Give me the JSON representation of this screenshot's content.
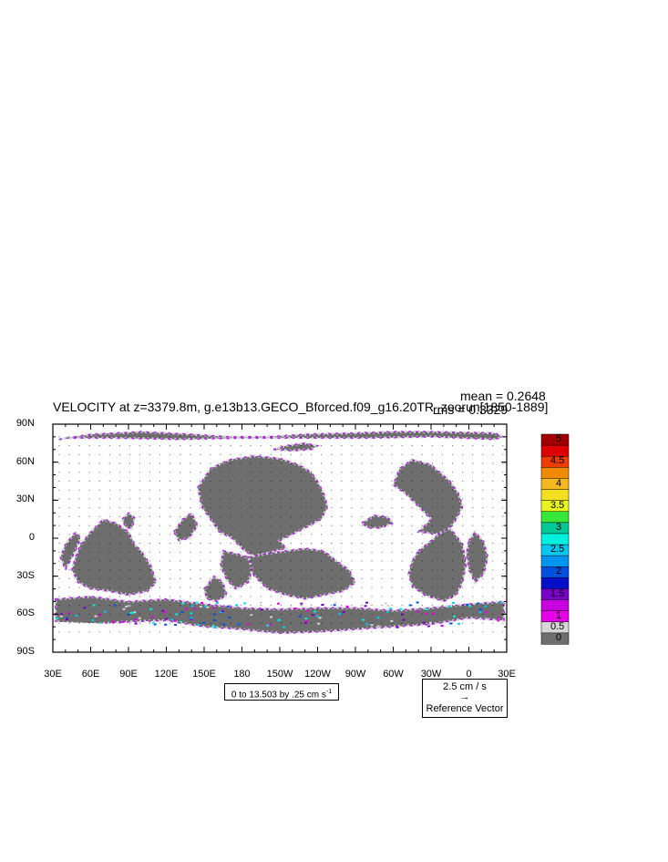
{
  "title": "VELOCITY at z=3379.8m, g.e13b13.GECO_Bforced.f09_g16.20TR_zoorun[1850-1889]",
  "stats": {
    "mean": "mean = 0.2648",
    "rms": "rms = 0.3329"
  },
  "axes": {
    "y_ticks": [
      "90N",
      "60N",
      "30N",
      "0",
      "30S",
      "60S",
      "90S"
    ],
    "x_ticks": [
      "30E",
      "60E",
      "90E",
      "120E",
      "150E",
      "180",
      "150W",
      "120W",
      "90W",
      "60W",
      "30W",
      "0",
      "30E"
    ]
  },
  "contour_info": "0 to 13.503 by .25 cm s",
  "contour_info_sup": "-1",
  "reference_vector": {
    "value": "2.5 cm / s",
    "label": "Reference Vector"
  },
  "colorbar": {
    "labels": [
      "5",
      "4.5",
      "4",
      "3.5",
      "3",
      "2.5",
      "2",
      "1.5",
      "1",
      "0.5",
      "0"
    ],
    "colors": [
      "#a00000",
      "#dd0000",
      "#f03c00",
      "#f08a00",
      "#f5b820",
      "#f5e020",
      "#e8f520",
      "#38e838",
      "#00c896",
      "#00f0e0",
      "#00c8f0",
      "#0096f0",
      "#0050e0",
      "#0010c8",
      "#7800c8",
      "#c800e0",
      "#e600e6",
      "#d6d6d6",
      "#6e6e6e"
    ]
  },
  "chart_data": {
    "type": "map",
    "projection": "cylindrical equidistant",
    "lat_range": [
      -90,
      90
    ],
    "lon_range": [
      30,
      390
    ],
    "land_color": "#ffffff",
    "ocean_base_color": "#6e6e6e",
    "regions": [
      {
        "name": "north-atlantic-arctic",
        "poly": [
          [
            35,
            78
          ],
          [
            60,
            82
          ],
          [
            100,
            84
          ],
          [
            140,
            82
          ],
          [
            170,
            80
          ],
          [
            200,
            80
          ],
          [
            230,
            82
          ],
          [
            270,
            83
          ],
          [
            300,
            84
          ],
          [
            330,
            84
          ],
          [
            380,
            83
          ],
          [
            388,
            80
          ],
          [
            380,
            78
          ],
          [
            330,
            80
          ],
          [
            280,
            79
          ],
          [
            230,
            79
          ],
          [
            180,
            79
          ],
          [
            130,
            78
          ],
          [
            80,
            79
          ],
          [
            40,
            79
          ]
        ]
      },
      {
        "name": "arctic-patch-1",
        "poly": [
          [
            205,
            70
          ],
          [
            215,
            73
          ],
          [
            230,
            75
          ],
          [
            240,
            73
          ],
          [
            235,
            70
          ],
          [
            220,
            69
          ]
        ]
      },
      {
        "name": "north-pacific",
        "poly": [
          [
            145,
            40
          ],
          [
            155,
            55
          ],
          [
            170,
            62
          ],
          [
            190,
            65
          ],
          [
            210,
            63
          ],
          [
            225,
            58
          ],
          [
            235,
            52
          ],
          [
            240,
            45
          ],
          [
            245,
            35
          ],
          [
            248,
            25
          ],
          [
            243,
            15
          ],
          [
            230,
            8
          ],
          [
            220,
            3
          ],
          [
            210,
            -2
          ],
          [
            215,
            -8
          ],
          [
            200,
            -12
          ],
          [
            190,
            -15
          ],
          [
            182,
            -10
          ],
          [
            172,
            0
          ],
          [
            162,
            5
          ],
          [
            155,
            15
          ],
          [
            148,
            25
          ]
        ]
      },
      {
        "name": "east-pacific-south",
        "poly": [
          [
            185,
            -15
          ],
          [
            200,
            -12
          ],
          [
            215,
            -10
          ],
          [
            230,
            -8
          ],
          [
            245,
            -10
          ],
          [
            255,
            -18
          ],
          [
            265,
            -25
          ],
          [
            270,
            -35
          ],
          [
            260,
            -42
          ],
          [
            245,
            -45
          ],
          [
            230,
            -48
          ],
          [
            215,
            -45
          ],
          [
            200,
            -40
          ],
          [
            190,
            -30
          ],
          [
            182,
            -20
          ]
        ]
      },
      {
        "name": "south-pacific-west",
        "poly": [
          [
            165,
            -10
          ],
          [
            175,
            -12
          ],
          [
            185,
            -15
          ],
          [
            188,
            -25
          ],
          [
            185,
            -35
          ],
          [
            175,
            -40
          ],
          [
            168,
            -33
          ],
          [
            163,
            -22
          ]
        ]
      },
      {
        "name": "indian-ocean",
        "poly": [
          [
            52,
            -5
          ],
          [
            60,
            5
          ],
          [
            70,
            15
          ],
          [
            80,
            12
          ],
          [
            90,
            5
          ],
          [
            95,
            -5
          ],
          [
            100,
            -10
          ],
          [
            108,
            -22
          ],
          [
            112,
            -35
          ],
          [
            105,
            -42
          ],
          [
            90,
            -45
          ],
          [
            75,
            -42
          ],
          [
            60,
            -40
          ],
          [
            50,
            -35
          ],
          [
            45,
            -25
          ],
          [
            48,
            -15
          ]
        ]
      },
      {
        "name": "indian-west-strip",
        "poly": [
          [
            40,
            -25
          ],
          [
            48,
            -10
          ],
          [
            52,
            0
          ],
          [
            48,
            5
          ],
          [
            40,
            -5
          ],
          [
            36,
            -15
          ]
        ]
      },
      {
        "name": "tasman",
        "poly": [
          [
            150,
            -40
          ],
          [
            158,
            -30
          ],
          [
            165,
            -35
          ],
          [
            168,
            -45
          ],
          [
            160,
            -50
          ],
          [
            152,
            -48
          ]
        ]
      },
      {
        "name": "east-indian-ne",
        "poly": [
          [
            85,
            15
          ],
          [
            90,
            20
          ],
          [
            95,
            16
          ],
          [
            93,
            8
          ],
          [
            88,
            8
          ]
        ]
      },
      {
        "name": "west-pacific-marginal",
        "poly": [
          [
            126,
            5
          ],
          [
            133,
            15
          ],
          [
            140,
            20
          ],
          [
            145,
            10
          ],
          [
            138,
            0
          ],
          [
            130,
            -2
          ]
        ]
      },
      {
        "name": "caribbean",
        "poly": [
          [
            275,
            12
          ],
          [
            285,
            18
          ],
          [
            295,
            17
          ],
          [
            300,
            12
          ],
          [
            290,
            8
          ],
          [
            280,
            8
          ]
        ]
      },
      {
        "name": "south-atlantic",
        "poly": [
          [
            320,
            -10
          ],
          [
            330,
            -2
          ],
          [
            338,
            5
          ],
          [
            345,
            8
          ],
          [
            350,
            2
          ],
          [
            355,
            -5
          ],
          [
            358,
            -20
          ],
          [
            355,
            -35
          ],
          [
            350,
            -45
          ],
          [
            340,
            -50
          ],
          [
            325,
            -45
          ],
          [
            315,
            -38
          ],
          [
            312,
            -28
          ],
          [
            315,
            -18
          ]
        ]
      },
      {
        "name": "north-atlantic",
        "poly": [
          [
            320,
            5
          ],
          [
            330,
            15
          ],
          [
            320,
            25
          ],
          [
            310,
            35
          ],
          [
            300,
            42
          ],
          [
            305,
            55
          ],
          [
            315,
            62
          ],
          [
            330,
            58
          ],
          [
            345,
            45
          ],
          [
            352,
            35
          ],
          [
            355,
            25
          ],
          [
            350,
            15
          ],
          [
            345,
            8
          ],
          [
            335,
            3
          ]
        ]
      },
      {
        "name": "east-atlantic-africa",
        "poly": [
          [
            360,
            -2
          ],
          [
            365,
            5
          ],
          [
            372,
            -3
          ],
          [
            375,
            -15
          ],
          [
            372,
            -28
          ],
          [
            365,
            -35
          ],
          [
            360,
            -25
          ],
          [
            358,
            -12
          ]
        ]
      },
      {
        "name": "southern-ocean",
        "poly": [
          [
            32,
            -48
          ],
          [
            60,
            -46
          ],
          [
            90,
            -50
          ],
          [
            120,
            -48
          ],
          [
            150,
            -52
          ],
          [
            180,
            -55
          ],
          [
            210,
            -56
          ],
          [
            240,
            -55
          ],
          [
            270,
            -55
          ],
          [
            300,
            -57
          ],
          [
            330,
            -55
          ],
          [
            360,
            -52
          ],
          [
            388,
            -50
          ],
          [
            388,
            -65
          ],
          [
            360,
            -63
          ],
          [
            330,
            -68
          ],
          [
            300,
            -70
          ],
          [
            270,
            -72
          ],
          [
            240,
            -74
          ],
          [
            210,
            -75
          ],
          [
            180,
            -72
          ],
          [
            150,
            -70
          ],
          [
            120,
            -65
          ],
          [
            90,
            -66
          ],
          [
            60,
            -68
          ],
          [
            32,
            -66
          ]
        ]
      }
    ],
    "land_patches": [
      {
        "name": "antarctica-fill",
        "poly": [
          [
            30,
            -66
          ],
          [
            90,
            -68
          ],
          [
            150,
            -72
          ],
          [
            210,
            -76
          ],
          [
            270,
            -74
          ],
          [
            330,
            -72
          ],
          [
            390,
            -66
          ],
          [
            390,
            -90
          ],
          [
            30,
            -90
          ]
        ]
      }
    ]
  }
}
